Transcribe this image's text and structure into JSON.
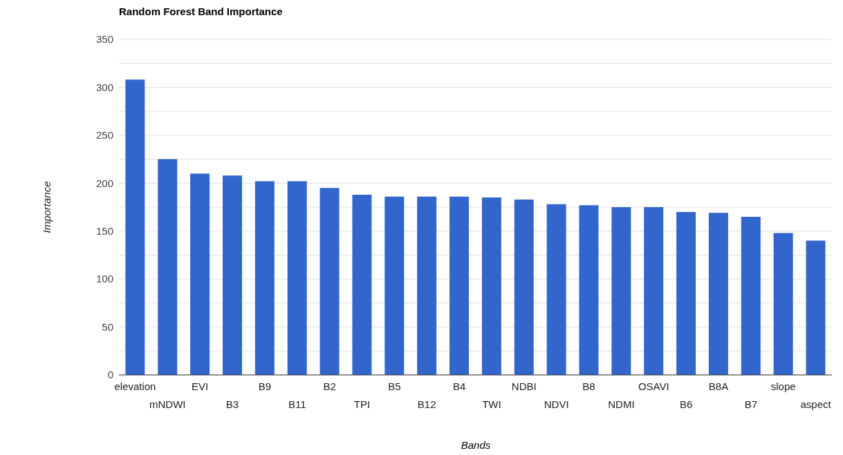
{
  "chart_data": {
    "type": "bar",
    "title": "Random Forest Band Importance",
    "xlabel": "Bands",
    "ylabel": "Importance",
    "categories": [
      "elevation",
      "mNDWI",
      "EVI",
      "B3",
      "B9",
      "B11",
      "B2",
      "TPI",
      "B5",
      "B12",
      "B4",
      "TWI",
      "NDBI",
      "NDVI",
      "B8",
      "NDMI",
      "OSAVI",
      "B6",
      "B8A",
      "B7",
      "slope",
      "aspect"
    ],
    "values": [
      308,
      225,
      210,
      208,
      202,
      202,
      195,
      188,
      186,
      186,
      186,
      185,
      183,
      178,
      177,
      175,
      175,
      170,
      169,
      165,
      148,
      140
    ],
    "color": "#3366cc",
    "ylim": [
      0,
      350
    ],
    "yticks": [
      0,
      {
        "value": 25,
        "label": null
      },
      50,
      {
        "value": 75,
        "label": null
      },
      100,
      {
        "value": 125,
        "label": null
      },
      150,
      {
        "value": 175,
        "label": null
      },
      200,
      {
        "value": 225,
        "label": null
      },
      250,
      {
        "value": 275,
        "label": null
      },
      300,
      {
        "value": 325,
        "label": null
      },
      350
    ],
    "grid": true,
    "legend": false
  }
}
